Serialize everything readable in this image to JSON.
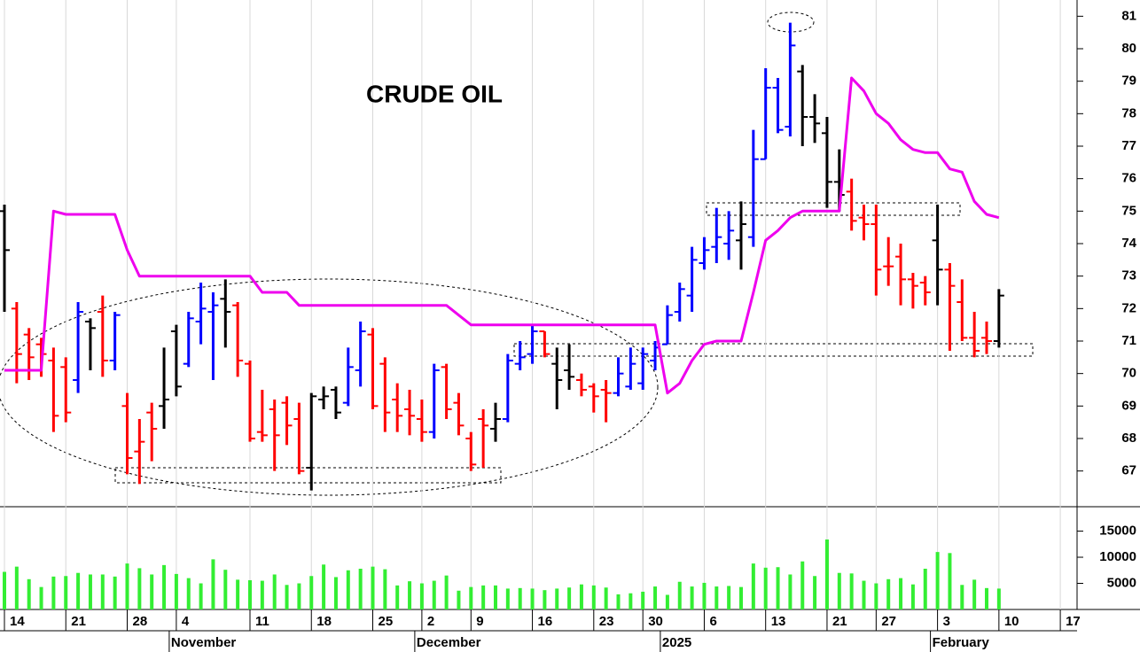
{
  "chart_data": [
    {
      "type": "ohlc",
      "title": "CRUDE OIL",
      "categories": [
        "14",
        null,
        null,
        null,
        null,
        "21",
        null,
        null,
        null,
        null,
        "28",
        null,
        null,
        null,
        "4",
        null,
        null,
        null,
        null,
        null,
        "11",
        null,
        null,
        null,
        null,
        "18",
        null,
        null,
        null,
        null,
        "25",
        null,
        null,
        null,
        "2",
        null,
        null,
        null,
        "9",
        null,
        null,
        null,
        null,
        "16",
        null,
        null,
        null,
        null,
        "23",
        null,
        null,
        null,
        "30",
        null,
        null,
        null,
        null,
        "6",
        null,
        null,
        null,
        null,
        "13",
        null,
        null,
        null,
        null,
        "21",
        null,
        null,
        null,
        "27",
        null,
        null,
        null,
        null,
        "3",
        null,
        null,
        null,
        null,
        "10",
        null,
        null,
        null,
        null,
        "17"
      ],
      "month_categories": [
        null,
        null,
        null,
        null,
        null,
        null,
        null,
        null,
        null,
        null,
        null,
        null,
        null,
        null,
        "November",
        null,
        null,
        null,
        null,
        null,
        null,
        null,
        null,
        null,
        null,
        null,
        null,
        null,
        null,
        null,
        null,
        null,
        null,
        null,
        "December",
        null,
        null,
        null,
        null,
        null,
        null,
        null,
        null,
        null,
        null,
        null,
        null,
        null,
        null,
        null,
        null,
        null,
        null,
        null,
        "2025",
        null,
        null,
        null,
        null,
        null,
        null,
        null,
        null,
        null,
        null,
        null,
        null,
        null,
        null,
        null,
        null,
        null,
        null,
        null,
        null,
        null,
        "February",
        null,
        null,
        null,
        null,
        null,
        null,
        null,
        null,
        null,
        null
      ],
      "open": [
        75.0,
        72.0,
        71.2,
        70.9,
        70.4,
        70.2,
        69.8,
        71.6,
        71.9,
        70.4,
        69.0,
        67.6,
        68.8,
        69.0,
        71.3,
        70.3,
        71.6,
        71.9,
        72.3,
        72.1,
        70.3,
        68.2,
        68.9,
        69.1,
        68.6,
        67.1,
        69.2,
        69.5,
        69.1,
        70.1,
        71.2,
        70.3,
        69.2,
        68.9,
        68.6,
        68.2,
        70.2,
        69.1,
        68.0,
        68.6,
        68.3,
        68.6,
        70.3,
        70.6,
        71.3,
        70.3,
        70.1,
        69.8,
        69.6,
        69.5,
        69.4,
        69.6,
        69.7,
        70.4,
        70.9,
        71.9,
        72.4,
        73.4,
        73.9,
        74.0,
        74.1,
        74.2,
        76.6,
        78.8,
        77.6,
        79.3,
        77.9,
        77.4,
        75.9,
        75.6,
        74.8,
        74.6,
        73.3,
        73.6,
        72.9,
        72.8,
        74.1,
        73.2,
        72.2,
        71.1,
        71.1,
        71.0,
        null,
        null,
        null,
        null,
        null
      ],
      "high": [
        75.2,
        72.2,
        71.4,
        71.1,
        70.8,
        70.5,
        72.2,
        71.7,
        72.4,
        71.9,
        69.4,
        68.6,
        69.1,
        70.8,
        71.5,
        71.9,
        72.8,
        72.5,
        72.9,
        72.2,
        70.4,
        69.5,
        69.2,
        69.3,
        69.1,
        69.4,
        69.6,
        69.6,
        70.8,
        71.6,
        71.4,
        70.5,
        69.7,
        69.5,
        69.2,
        70.3,
        70.3,
        69.4,
        68.2,
        68.9,
        69.1,
        70.6,
        71.0,
        71.5,
        71.3,
        70.8,
        70.9,
        70.0,
        69.7,
        69.8,
        70.5,
        70.8,
        70.8,
        71.0,
        72.1,
        72.8,
        73.9,
        74.2,
        75.1,
        75.0,
        75.3,
        77.5,
        79.4,
        79.1,
        80.8,
        79.5,
        78.6,
        77.9,
        76.9,
        76.0,
        75.2,
        75.2,
        74.2,
        74.0,
        73.1,
        73.0,
        75.2,
        73.4,
        72.9,
        71.9,
        71.6,
        72.6,
        null,
        null,
        null,
        null,
        null
      ],
      "low": [
        71.9,
        69.7,
        69.8,
        69.9,
        68.2,
        68.5,
        69.4,
        70.1,
        69.9,
        70.1,
        66.9,
        66.6,
        67.3,
        68.3,
        69.3,
        70.2,
        70.9,
        69.8,
        70.8,
        69.9,
        67.9,
        67.9,
        67.0,
        67.8,
        66.9,
        66.4,
        68.9,
        68.6,
        69.0,
        69.6,
        68.9,
        68.2,
        68.2,
        68.1,
        67.9,
        68.0,
        68.6,
        68.1,
        67.0,
        67.1,
        67.9,
        68.5,
        70.1,
        70.3,
        70.5,
        68.9,
        69.5,
        69.3,
        68.8,
        68.5,
        69.3,
        69.5,
        69.5,
        70.1,
        70.9,
        71.6,
        71.9,
        73.2,
        73.4,
        73.5,
        73.2,
        73.9,
        76.6,
        77.4,
        77.3,
        77.0,
        77.1,
        75.1,
        75.0,
        74.4,
        74.1,
        72.4,
        72.7,
        72.1,
        72.0,
        72.1,
        72.1,
        70.7,
        71.0,
        70.5,
        70.6,
        70.8,
        null,
        null,
        null,
        null,
        null
      ],
      "close": [
        73.8,
        70.6,
        70.5,
        70.6,
        68.7,
        68.8,
        71.9,
        71.4,
        70.4,
        71.8,
        67.4,
        67.9,
        68.3,
        69.2,
        69.6,
        71.7,
        72.0,
        72.1,
        71.9,
        70.4,
        68.0,
        68.1,
        68.1,
        68.4,
        67.0,
        69.3,
        69.3,
        68.8,
        70.2,
        71.3,
        69.0,
        68.8,
        68.7,
        68.7,
        68.2,
        70.1,
        68.9,
        68.4,
        67.2,
        68.4,
        68.6,
        70.4,
        70.5,
        71.3,
        70.6,
        69.8,
        69.9,
        69.5,
        69.3,
        69.4,
        70.0,
        70.3,
        70.6,
        70.8,
        71.8,
        72.6,
        73.5,
        73.8,
        74.2,
        74.4,
        74.6,
        76.6,
        78.8,
        77.5,
        80.1,
        77.9,
        77.7,
        75.9,
        75.5,
        74.7,
        74.6,
        73.2,
        73.3,
        72.9,
        72.7,
        72.5,
        73.2,
        72.7,
        71.1,
        70.7,
        71.0,
        72.4,
        null,
        null,
        null,
        null,
        null
      ],
      "colors": [
        "#000000",
        "#ff0000",
        "#ff0000",
        "#ff0000",
        "#ff0000",
        "#ff0000",
        "#0000ff",
        "#000000",
        "#ff0000",
        "#0000ff",
        "#ff0000",
        "#ff0000",
        "#ff0000",
        "#000000",
        "#000000",
        "#0000ff",
        "#0000ff",
        "#0000ff",
        "#000000",
        "#ff0000",
        "#ff0000",
        "#ff0000",
        "#ff0000",
        "#ff0000",
        "#ff0000",
        "#000000",
        "#000000",
        "#000000",
        "#0000ff",
        "#0000ff",
        "#ff0000",
        "#ff0000",
        "#ff0000",
        "#ff0000",
        "#ff0000",
        "#0000ff",
        "#ff0000",
        "#ff0000",
        "#ff0000",
        "#ff0000",
        "#000000",
        "#0000ff",
        "#0000ff",
        "#0000ff",
        "#ff0000",
        "#000000",
        "#000000",
        "#ff0000",
        "#ff0000",
        "#ff0000",
        "#0000ff",
        "#0000ff",
        "#0000ff",
        "#0000ff",
        "#0000ff",
        "#0000ff",
        "#0000ff",
        "#0000ff",
        "#0000ff",
        "#0000ff",
        "#000000",
        "#0000ff",
        "#0000ff",
        "#0000ff",
        "#0000ff",
        "#000000",
        "#000000",
        "#000000",
        "#000000",
        "#ff0000",
        "#ff0000",
        "#ff0000",
        "#ff0000",
        "#ff0000",
        "#ff0000",
        "#ff0000",
        "#000000",
        "#ff0000",
        "#ff0000",
        "#ff0000",
        "#ff0000",
        "#000000",
        null,
        null,
        null,
        null,
        null
      ],
      "series": [
        {
          "color": "#ee00ee",
          "values": [
            70.1,
            70.1,
            70.1,
            70.1,
            75.0,
            74.9,
            74.9,
            74.9,
            74.9,
            74.9,
            73.8,
            73.0,
            73.0,
            73.0,
            73.0,
            73.0,
            73.0,
            73.0,
            73.0,
            73.0,
            73.0,
            72.5,
            72.5,
            72.5,
            72.1,
            72.1,
            72.1,
            72.1,
            72.1,
            72.1,
            72.1,
            72.1,
            72.1,
            72.1,
            72.1,
            72.1,
            72.1,
            71.8,
            71.5,
            71.5,
            71.5,
            71.5,
            71.5,
            71.5,
            71.5,
            71.5,
            71.5,
            71.5,
            71.5,
            71.5,
            71.5,
            71.5,
            71.5,
            71.5,
            69.4,
            69.7,
            70.4,
            70.9,
            71.0,
            71.0,
            71.0,
            72.5,
            74.1,
            74.4,
            74.8,
            75.0,
            75.0,
            75.0,
            75.0,
            79.1,
            78.7,
            78.0,
            77.7,
            77.2,
            76.9,
            76.8,
            76.8,
            76.3,
            76.2,
            75.3,
            74.9,
            74.8,
            null,
            null,
            null,
            null,
            null
          ]
        }
      ],
      "ylim": [
        65.9,
        81.5
      ],
      "yticks": [
        67,
        68,
        69,
        70,
        71,
        72,
        73,
        74,
        75,
        76,
        77,
        78,
        79,
        80,
        81
      ],
      "grid": true
    },
    {
      "type": "bar",
      "color": "#33ee33",
      "values": [
        7200,
        8200,
        5800,
        4300,
        6300,
        6400,
        7000,
        6700,
        6700,
        6300,
        8800,
        7900,
        6700,
        8500,
        6800,
        6000,
        5000,
        9600,
        7600,
        5700,
        5600,
        5500,
        6700,
        4700,
        5000,
        6400,
        8600,
        6200,
        7500,
        7800,
        8200,
        7700,
        4600,
        5400,
        5000,
        5500,
        6500,
        3600,
        4300,
        4600,
        4600,
        4000,
        4100,
        4000,
        3700,
        4000,
        4200,
        4800,
        4600,
        4200,
        2900,
        3100,
        3400,
        4400,
        2800,
        5300,
        4400,
        5100,
        4400,
        4500,
        4300,
        8800,
        8000,
        8100,
        6700,
        9200,
        6400,
        13400,
        7000,
        6900,
        5500,
        5000,
        5800,
        6000,
        4800,
        7800,
        11000,
        10800,
        4700,
        5700,
        4100,
        4000,
        null,
        null,
        null,
        null,
        null
      ],
      "ylim": [
        0,
        19500
      ],
      "yticks": [
        5000,
        10000,
        15000
      ]
    }
  ]
}
